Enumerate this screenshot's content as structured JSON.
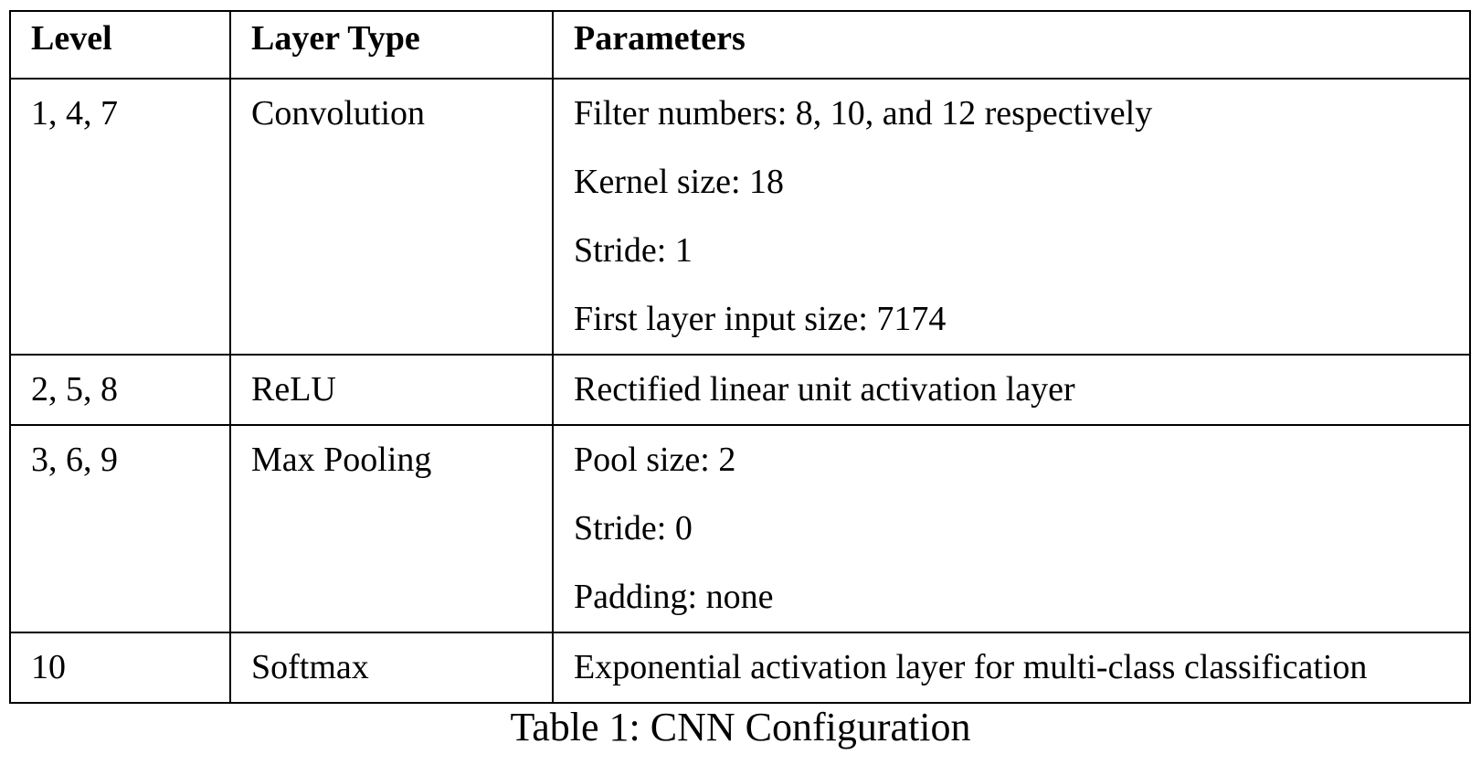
{
  "table": {
    "headers": [
      "Level",
      "Layer Type",
      "Parameters"
    ],
    "rows": [
      {
        "level": "1, 4, 7",
        "layer_type": "Convolution",
        "parameters": [
          "Filter numbers: 8, 10, and 12 respectively",
          "Kernel size: 18",
          "Stride: 1",
          "First layer input size: 7174"
        ]
      },
      {
        "level": "2, 5, 8",
        "layer_type": "ReLU",
        "parameters": [
          "Rectified linear unit activation layer"
        ]
      },
      {
        "level": "3, 6, 9",
        "layer_type": "Max Pooling",
        "parameters": [
          "Pool size: 2",
          "Stride: 0",
          "Padding: none"
        ]
      },
      {
        "level": "10",
        "layer_type": "Softmax",
        "parameters": [
          "Exponential activation layer for multi-class classification"
        ]
      }
    ]
  },
  "caption": "Table 1: CNN Configuration"
}
